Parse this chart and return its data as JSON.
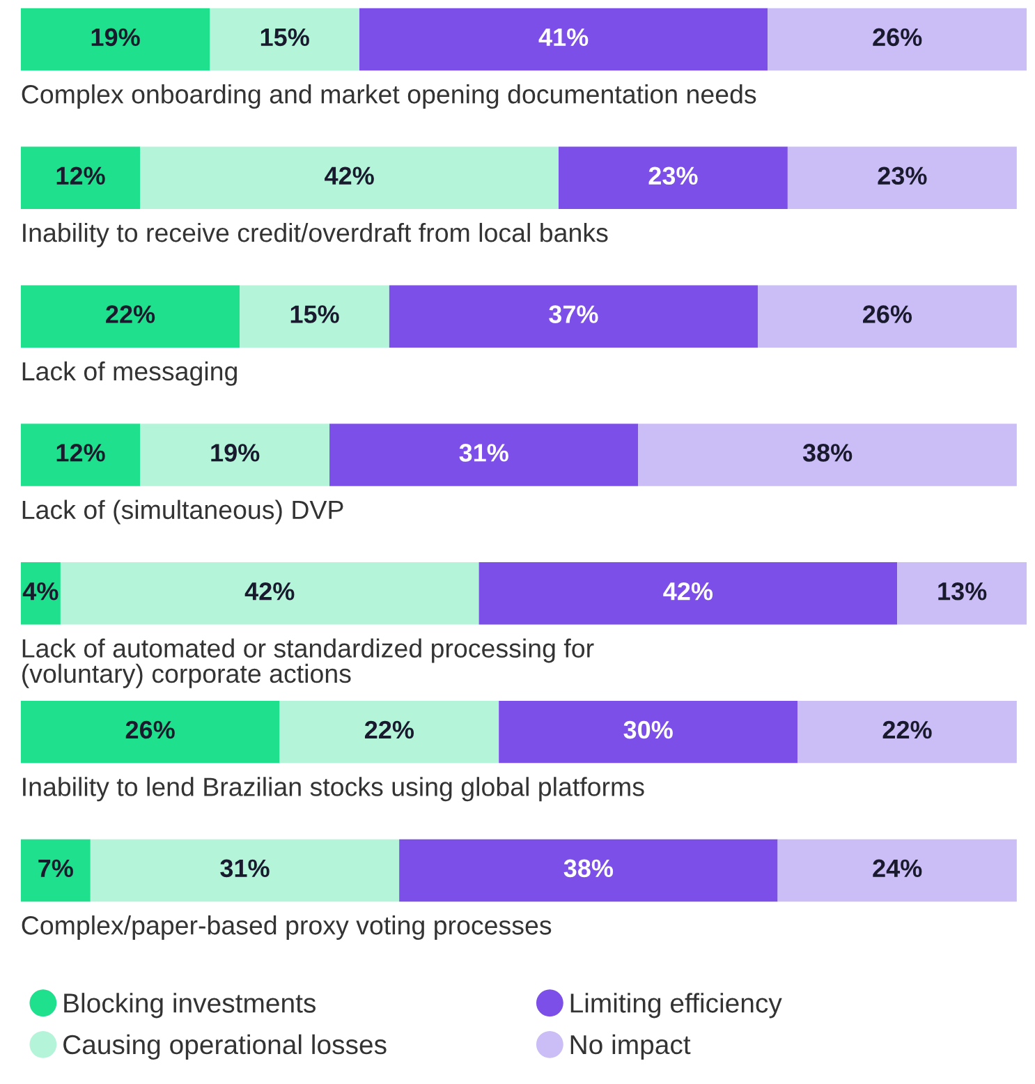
{
  "chart_data": {
    "type": "bar",
    "orientation": "horizontal",
    "stacked": true,
    "legend": "bottom",
    "xlim": [
      0,
      101
    ],
    "categories": [
      "Complex onboarding and market opening documentation needs",
      "Inability to receive credit/overdraft from local banks",
      "Lack of messaging",
      "Lack of (simultaneous) DVP",
      "Lack of automated or standardized processing for\n(voluntary) corporate actions",
      "Inability to lend Brazilian stocks using global platforms",
      "Complex/paper-based proxy voting processes"
    ],
    "series": [
      {
        "name": "Blocking investments",
        "color": "#1fe08c",
        "values": [
          19,
          12,
          22,
          12,
          4,
          26,
          7
        ],
        "value_labels": [
          "19%",
          "12%",
          "22%",
          "12%",
          "4%",
          "26%",
          "7%"
        ]
      },
      {
        "name": "Causing operational losses",
        "color": "#b4f5da",
        "values": [
          15,
          42,
          15,
          19,
          42,
          22,
          31
        ],
        "value_labels": [
          "15%",
          "42%",
          "15%",
          "19%",
          "42%",
          "22%",
          "31%"
        ]
      },
      {
        "name": "Limiting efficiency",
        "color": "#7c4fe9",
        "values": [
          41,
          23,
          37,
          31,
          42,
          30,
          38
        ],
        "value_labels": [
          "41%",
          "23%",
          "37%",
          "31%",
          "42%",
          "30%",
          "38%"
        ]
      },
      {
        "name": "No impact",
        "color": "#cbbdf6",
        "values": [
          26,
          23,
          26,
          38,
          13,
          22,
          24
        ],
        "value_labels": [
          "26%",
          "23%",
          "26%",
          "38%",
          "13%",
          "22%",
          "24%"
        ]
      }
    ]
  }
}
